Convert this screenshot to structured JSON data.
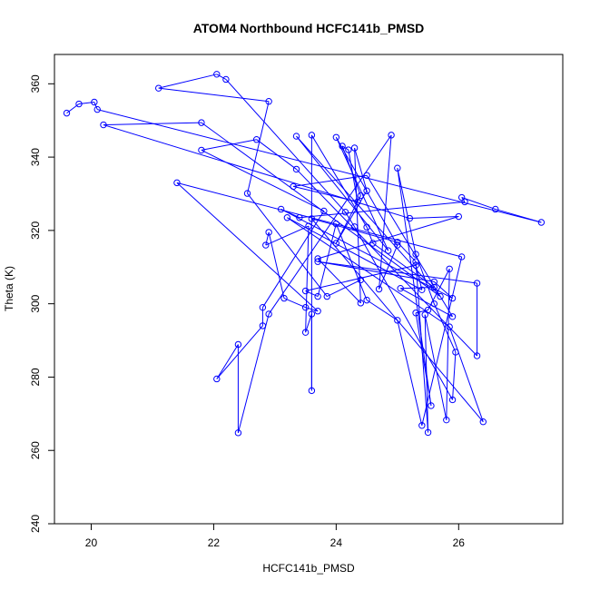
{
  "chart_data": {
    "type": "scatter",
    "title": "ATOM4 Northbound HCFC141b_PMSD",
    "xlabel": "HCFC141b_PMSD",
    "ylabel": "Theta (K)",
    "xlim": [
      19.4,
      27.7
    ],
    "ylim": [
      240,
      368
    ],
    "xticks": [
      20,
      22,
      24,
      26
    ],
    "yticks": [
      240,
      260,
      280,
      300,
      320,
      340,
      360
    ],
    "grid": false,
    "line_color": "#0000ff",
    "marker": "open-circle",
    "connected": true,
    "series": [
      {
        "values": [
          [
            19.6,
            352
          ],
          [
            19.8,
            354.5
          ],
          [
            20.05,
            355
          ],
          [
            20.1,
            353
          ],
          [
            27.35,
            322.2
          ],
          [
            26.6,
            325.8
          ],
          [
            26.05,
            329
          ],
          [
            26.1,
            327.8
          ],
          [
            23.4,
            323.5
          ],
          [
            23.1,
            325.8
          ],
          [
            25.9,
            301.5
          ],
          [
            25.6,
            306
          ],
          [
            23.7,
            311.5
          ],
          [
            26.3,
            305.6
          ],
          [
            26.3,
            285.8
          ],
          [
            23.35,
            336.7
          ],
          [
            22.7,
            344.8
          ],
          [
            21.8,
            341.9
          ],
          [
            23.8,
            325.3
          ],
          [
            22.8,
            299
          ],
          [
            22.8,
            294
          ],
          [
            22.05,
            279.5
          ],
          [
            22.4,
            288.9
          ],
          [
            22.4,
            264.8
          ],
          [
            22.9,
            297.2
          ],
          [
            24.9,
            346
          ],
          [
            24.7,
            304
          ],
          [
            25.0,
            316
          ],
          [
            24.0,
            345.4
          ],
          [
            24.85,
            314.5
          ],
          [
            23.35,
            345.7
          ],
          [
            25.7,
            302
          ],
          [
            21.8,
            349.4
          ],
          [
            20.2,
            348.8
          ],
          [
            25.2,
            323.3
          ],
          [
            26.0,
            323.8
          ],
          [
            23.7,
            312.3
          ],
          [
            24.4,
            300.2
          ],
          [
            24.3,
            342.5
          ],
          [
            24.5,
            330.8
          ],
          [
            24.0,
            316.5
          ],
          [
            24.4,
            329.5
          ],
          [
            24.1,
            343
          ],
          [
            24.2,
            342
          ],
          [
            24.35,
            327.8
          ],
          [
            23.3,
            332
          ],
          [
            24.5,
            335
          ],
          [
            25.9,
            296.5
          ],
          [
            25.05,
            304.2
          ],
          [
            25.6,
            304.5
          ],
          [
            24.6,
            316.5
          ],
          [
            24.5,
            320.9
          ],
          [
            23.6,
            346
          ],
          [
            23.6,
            276.3
          ],
          [
            23.6,
            297.2
          ],
          [
            23.5,
            292.2
          ],
          [
            23.55,
            321.2
          ],
          [
            22.85,
            316
          ],
          [
            22.9,
            319.5
          ],
          [
            23.15,
            301.5
          ],
          [
            23.5,
            299
          ],
          [
            23.7,
            298
          ],
          [
            21.4,
            333
          ],
          [
            26.05,
            312.8
          ],
          [
            25.4,
            266.8
          ],
          [
            25.0,
            295.5
          ],
          [
            24.5,
            301
          ],
          [
            24.0,
            321.8
          ],
          [
            23.7,
            302
          ],
          [
            23.5,
            303.5
          ],
          [
            25.3,
            310.5
          ],
          [
            25.4,
            303.8
          ],
          [
            23.2,
            323.5
          ],
          [
            25.85,
            293.7
          ],
          [
            26.4,
            267.8
          ],
          [
            23.6,
            323.2
          ],
          [
            25.0,
            316.8
          ],
          [
            25.3,
            311.5
          ],
          [
            25.5,
            264.9
          ],
          [
            25.45,
            297
          ],
          [
            25.8,
            268.3
          ],
          [
            25.85,
            309.5
          ],
          [
            25.5,
            298.3
          ],
          [
            25.3,
            297.5
          ],
          [
            25.55,
            272.2
          ],
          [
            25.0,
            337
          ],
          [
            25.3,
            313.5
          ],
          [
            25.6,
            300
          ],
          [
            25.95,
            286.8
          ],
          [
            25.9,
            273.8
          ],
          [
            24.3,
            321
          ],
          [
            24.15,
            325
          ],
          [
            22.2,
            361.2
          ],
          [
            22.05,
            362.6
          ],
          [
            21.1,
            358.8
          ],
          [
            22.9,
            355.2
          ],
          [
            22.55,
            330.1
          ],
          [
            23.85,
            302
          ],
          [
            24.4,
            306.5
          ]
        ]
      }
    ]
  }
}
